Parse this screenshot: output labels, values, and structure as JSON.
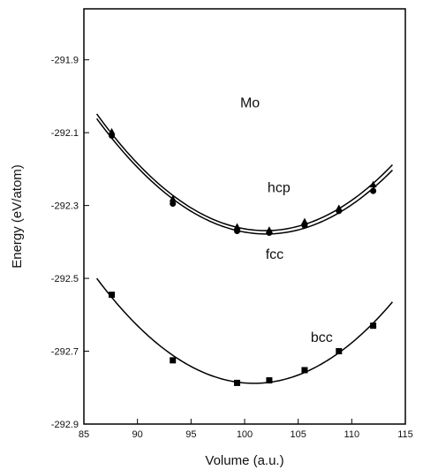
{
  "chart_data": {
    "type": "line",
    "title": "",
    "xlabel": "Volume (a.u.)",
    "ylabel": "Energy (eV/atom)",
    "xlim": [
      85,
      115
    ],
    "ylim": [
      -292.9,
      -291.76
    ],
    "x_ticks": [
      85,
      90,
      95,
      100,
      105,
      110,
      115
    ],
    "y_ticks": [
      -292.9,
      -292.7,
      -292.5,
      -292.3,
      -292.1,
      -291.9
    ],
    "grid": false,
    "legend": "none",
    "series": [
      {
        "name": "hcp",
        "marker": "triangle",
        "color": "#000000",
        "x": [
          87.6,
          93.3,
          99.3,
          102.3,
          105.6,
          108.8,
          112.0
        ],
        "y": [
          -292.098,
          -292.282,
          -292.359,
          -292.368,
          -292.345,
          -292.308,
          -292.243
        ]
      },
      {
        "name": "fcc",
        "marker": "circle",
        "color": "#000000",
        "x": [
          87.6,
          93.3,
          99.3,
          102.3,
          105.6,
          108.8,
          112.0
        ],
        "y": [
          -292.108,
          -292.295,
          -292.37,
          -292.375,
          -292.355,
          -292.315,
          -292.26
        ]
      },
      {
        "name": "bcc",
        "marker": "square",
        "color": "#000000",
        "x": [
          87.6,
          93.3,
          99.3,
          102.3,
          105.6,
          108.8,
          112.0
        ],
        "y": [
          -292.545,
          -292.725,
          -292.787,
          -292.78,
          -292.752,
          -292.7,
          -292.63
        ]
      }
    ],
    "annotations": [
      {
        "text": "Mo",
        "x": 100.5,
        "y": -292.03
      },
      {
        "text": "hcp",
        "x": 103.2,
        "y": -292.263
      },
      {
        "text": "fcc",
        "x": 102.8,
        "y": -292.447
      },
      {
        "text": "bcc",
        "x": 107.2,
        "y": -292.675
      }
    ]
  }
}
